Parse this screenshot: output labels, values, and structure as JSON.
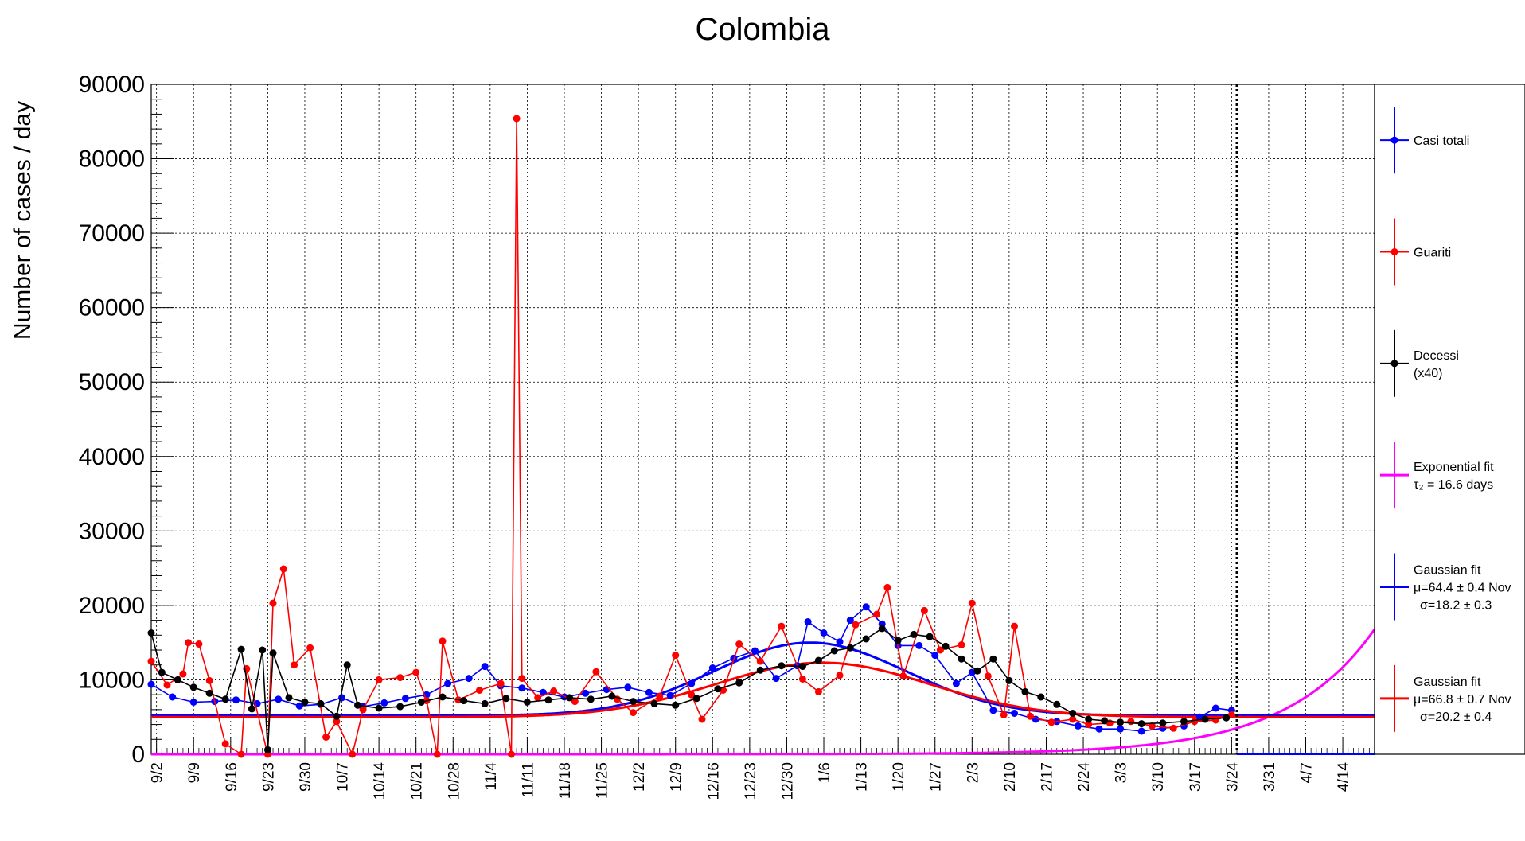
{
  "chart_data": {
    "type": "line",
    "title": "Colombia",
    "ylabel": "Number of cases / day",
    "xlabel": "",
    "ylim": [
      0,
      90000
    ],
    "x_unit": "date",
    "x_range": [
      "2020-09-01",
      "2021-04-20"
    ],
    "grid": true,
    "yticks": [
      0,
      10000,
      20000,
      30000,
      40000,
      50000,
      60000,
      70000,
      80000,
      90000
    ],
    "xticks": [
      {
        "label": "9/2",
        "date": "2020-09-02"
      },
      {
        "label": "9/9",
        "date": "2020-09-09"
      },
      {
        "label": "9/16",
        "date": "2020-09-16"
      },
      {
        "label": "9/23",
        "date": "2020-09-23"
      },
      {
        "label": "9/30",
        "date": "2020-09-30"
      },
      {
        "label": "10/7",
        "date": "2020-10-07"
      },
      {
        "label": "10/14",
        "date": "2020-10-14"
      },
      {
        "label": "10/21",
        "date": "2020-10-21"
      },
      {
        "label": "10/28",
        "date": "2020-10-28"
      },
      {
        "label": "11/4",
        "date": "2020-11-04"
      },
      {
        "label": "11/11",
        "date": "2020-11-11"
      },
      {
        "label": "11/18",
        "date": "2020-11-18"
      },
      {
        "label": "11/25",
        "date": "2020-11-25"
      },
      {
        "label": "12/2",
        "date": "2020-12-02"
      },
      {
        "label": "12/9",
        "date": "2020-12-09"
      },
      {
        "label": "12/16",
        "date": "2020-12-16"
      },
      {
        "label": "12/23",
        "date": "2020-12-23"
      },
      {
        "label": "12/30",
        "date": "2020-12-30"
      },
      {
        "label": "1/6",
        "date": "2021-01-06"
      },
      {
        "label": "1/13",
        "date": "2021-01-13"
      },
      {
        "label": "1/20",
        "date": "2021-01-20"
      },
      {
        "label": "1/27",
        "date": "2021-01-27"
      },
      {
        "label": "2/3",
        "date": "2021-02-03"
      },
      {
        "label": "2/10",
        "date": "2021-02-10"
      },
      {
        "label": "2/17",
        "date": "2021-02-17"
      },
      {
        "label": "2/24",
        "date": "2021-02-24"
      },
      {
        "label": "3/3",
        "date": "2021-03-03"
      },
      {
        "label": "3/10",
        "date": "2021-03-10"
      },
      {
        "label": "3/17",
        "date": "2021-03-17"
      },
      {
        "label": "3/24",
        "date": "2021-03-24"
      },
      {
        "label": "3/31",
        "date": "2021-03-31"
      },
      {
        "label": "4/7",
        "date": "2021-04-07"
      },
      {
        "label": "4/14",
        "date": "2021-04-14"
      }
    ],
    "vline": {
      "date": "2021-03-25",
      "style": "dotted"
    },
    "legend_position": "right",
    "legend": [
      {
        "id": "casi",
        "label": "Casi totali",
        "sub": "",
        "color": "#0000ff"
      },
      {
        "id": "guariti",
        "label": "Guariti",
        "sub": "",
        "color": "#ff0000"
      },
      {
        "id": "decessi",
        "label": "Decessi",
        "sub": "(x40)",
        "color": "#000000"
      },
      {
        "id": "expfit",
        "label": "Exponential fit",
        "sub": "τ₂ = 16.6 days",
        "color": "#ff00ff"
      },
      {
        "id": "gfit1",
        "label": "Gaussian fit",
        "sub": "μ=64.4 ± 0.4 Nov",
        "sub2": "σ=18.2 ± 0.3",
        "color": "#0000ff"
      },
      {
        "id": "gfit2",
        "label": "Gaussian fit",
        "sub": "μ=66.8 ± 0.7 Nov",
        "sub2": "σ=20.2 ± 0.4",
        "color": "#ff0000"
      }
    ],
    "series": [
      {
        "name": "Casi totali",
        "color": "#0000ff",
        "points": [
          [
            "2020-09-01",
            9400
          ],
          [
            "2020-09-05",
            7700
          ],
          [
            "2020-09-09",
            7000
          ],
          [
            "2020-09-13",
            7100
          ],
          [
            "2020-09-17",
            7300
          ],
          [
            "2020-09-21",
            6800
          ],
          [
            "2020-09-25",
            7400
          ],
          [
            "2020-09-29",
            6500
          ],
          [
            "2020-10-03",
            6700
          ],
          [
            "2020-10-07",
            7600
          ],
          [
            "2020-10-11",
            6400
          ],
          [
            "2020-10-15",
            6900
          ],
          [
            "2020-10-19",
            7500
          ],
          [
            "2020-10-23",
            8000
          ],
          [
            "2020-10-27",
            9500
          ],
          [
            "2020-10-31",
            10200
          ],
          [
            "2020-11-03",
            11800
          ],
          [
            "2020-11-06",
            9200
          ],
          [
            "2020-11-10",
            8900
          ],
          [
            "2020-11-14",
            8300
          ],
          [
            "2020-11-18",
            7700
          ],
          [
            "2020-11-22",
            8200
          ],
          [
            "2020-11-26",
            8700
          ],
          [
            "2020-11-30",
            9000
          ],
          [
            "2020-12-04",
            8300
          ],
          [
            "2020-12-08",
            7900
          ],
          [
            "2020-12-12",
            9500
          ],
          [
            "2020-12-16",
            11600
          ],
          [
            "2020-12-20",
            12900
          ],
          [
            "2020-12-24",
            13900
          ],
          [
            "2020-12-28",
            10200
          ],
          [
            "2021-01-01",
            11900
          ],
          [
            "2021-01-03",
            17800
          ],
          [
            "2021-01-06",
            16300
          ],
          [
            "2021-01-09",
            15100
          ],
          [
            "2021-01-11",
            18000
          ],
          [
            "2021-01-14",
            19800
          ],
          [
            "2021-01-17",
            17500
          ],
          [
            "2021-01-20",
            14600
          ],
          [
            "2021-01-24",
            14600
          ],
          [
            "2021-01-27",
            13300
          ],
          [
            "2021-01-31",
            9500
          ],
          [
            "2021-02-03",
            11000
          ],
          [
            "2021-02-07",
            5900
          ],
          [
            "2021-02-11",
            5500
          ],
          [
            "2021-02-15",
            4700
          ],
          [
            "2021-02-19",
            4400
          ],
          [
            "2021-02-23",
            3800
          ],
          [
            "2021-02-27",
            3400
          ],
          [
            "2021-03-03",
            3400
          ],
          [
            "2021-03-07",
            3100
          ],
          [
            "2021-03-11",
            3500
          ],
          [
            "2021-03-15",
            3800
          ],
          [
            "2021-03-18",
            5000
          ],
          [
            "2021-03-21",
            6200
          ],
          [
            "2021-03-24",
            5900
          ]
        ]
      },
      {
        "name": "Guariti",
        "color": "#ff0000",
        "points": [
          [
            "2020-09-01",
            12500
          ],
          [
            "2020-09-04",
            9300
          ],
          [
            "2020-09-07",
            10800
          ],
          [
            "2020-09-08",
            15000
          ],
          [
            "2020-09-10",
            14800
          ],
          [
            "2020-09-12",
            9900
          ],
          [
            "2020-09-15",
            1400
          ],
          [
            "2020-09-18",
            0
          ],
          [
            "2020-09-19",
            11500
          ],
          [
            "2020-09-23",
            0
          ],
          [
            "2020-09-24",
            20300
          ],
          [
            "2020-09-26",
            24900
          ],
          [
            "2020-09-28",
            12000
          ],
          [
            "2020-10-01",
            14300
          ],
          [
            "2020-10-04",
            2300
          ],
          [
            "2020-10-06",
            4400
          ],
          [
            "2020-10-09",
            0
          ],
          [
            "2020-10-11",
            6000
          ],
          [
            "2020-10-14",
            10000
          ],
          [
            "2020-10-18",
            10300
          ],
          [
            "2020-10-21",
            11000
          ],
          [
            "2020-10-23",
            7200
          ],
          [
            "2020-10-25",
            0
          ],
          [
            "2020-10-26",
            15200
          ],
          [
            "2020-10-29",
            7300
          ],
          [
            "2020-11-02",
            8600
          ],
          [
            "2020-11-06",
            9500
          ],
          [
            "2020-11-08",
            0
          ],
          [
            "2020-11-09",
            85400
          ],
          [
            "2020-11-10",
            10200
          ],
          [
            "2020-11-13",
            7600
          ],
          [
            "2020-11-16",
            8500
          ],
          [
            "2020-11-20",
            7100
          ],
          [
            "2020-11-24",
            11100
          ],
          [
            "2020-11-28",
            7400
          ],
          [
            "2020-12-01",
            5600
          ],
          [
            "2020-12-06",
            7800
          ],
          [
            "2020-12-09",
            13300
          ],
          [
            "2020-12-12",
            8000
          ],
          [
            "2020-12-14",
            4700
          ],
          [
            "2020-12-18",
            8600
          ],
          [
            "2020-12-21",
            14800
          ],
          [
            "2020-12-25",
            12500
          ],
          [
            "2020-12-29",
            17200
          ],
          [
            "2021-01-02",
            10100
          ],
          [
            "2021-01-05",
            8400
          ],
          [
            "2021-01-09",
            10600
          ],
          [
            "2021-01-12",
            17400
          ],
          [
            "2021-01-16",
            18800
          ],
          [
            "2021-01-18",
            22400
          ],
          [
            "2021-01-21",
            10500
          ],
          [
            "2021-01-25",
            19300
          ],
          [
            "2021-01-28",
            14000
          ],
          [
            "2021-02-01",
            14700
          ],
          [
            "2021-02-03",
            20300
          ],
          [
            "2021-02-06",
            10500
          ],
          [
            "2021-02-09",
            5300
          ],
          [
            "2021-02-11",
            17200
          ],
          [
            "2021-02-14",
            5100
          ],
          [
            "2021-02-18",
            4300
          ],
          [
            "2021-02-22",
            4700
          ],
          [
            "2021-02-25",
            4000
          ],
          [
            "2021-03-01",
            4200
          ],
          [
            "2021-03-05",
            4400
          ],
          [
            "2021-03-09",
            3800
          ],
          [
            "2021-03-13",
            3500
          ],
          [
            "2021-03-17",
            4400
          ],
          [
            "2021-03-21",
            4600
          ],
          [
            "2021-03-24",
            5300
          ]
        ]
      },
      {
        "name": "Decessi",
        "color": "#000000",
        "points": [
          [
            "2020-09-01",
            16300
          ],
          [
            "2020-09-03",
            11000
          ],
          [
            "2020-09-06",
            10000
          ],
          [
            "2020-09-09",
            9000
          ],
          [
            "2020-09-12",
            8200
          ],
          [
            "2020-09-15",
            7400
          ],
          [
            "2020-09-18",
            14100
          ],
          [
            "2020-09-20",
            6100
          ],
          [
            "2020-09-22",
            14000
          ],
          [
            "2020-09-23",
            600
          ],
          [
            "2020-09-24",
            13600
          ],
          [
            "2020-09-27",
            7600
          ],
          [
            "2020-09-30",
            7000
          ],
          [
            "2020-10-03",
            6800
          ],
          [
            "2020-10-06",
            5100
          ],
          [
            "2020-10-08",
            12000
          ],
          [
            "2020-10-10",
            6600
          ],
          [
            "2020-10-14",
            6200
          ],
          [
            "2020-10-18",
            6400
          ],
          [
            "2020-10-22",
            7000
          ],
          [
            "2020-10-26",
            7700
          ],
          [
            "2020-10-30",
            7200
          ],
          [
            "2020-11-03",
            6800
          ],
          [
            "2020-11-07",
            7500
          ],
          [
            "2020-11-11",
            7000
          ],
          [
            "2020-11-15",
            7300
          ],
          [
            "2020-11-19",
            7600
          ],
          [
            "2020-11-23",
            7400
          ],
          [
            "2020-11-27",
            7800
          ],
          [
            "2020-12-01",
            7100
          ],
          [
            "2020-12-05",
            6800
          ],
          [
            "2020-12-09",
            6600
          ],
          [
            "2020-12-13",
            7500
          ],
          [
            "2020-12-17",
            8800
          ],
          [
            "2020-12-21",
            9600
          ],
          [
            "2020-12-25",
            11300
          ],
          [
            "2020-12-29",
            11900
          ],
          [
            "2021-01-02",
            11800
          ],
          [
            "2021-01-05",
            12600
          ],
          [
            "2021-01-08",
            13900
          ],
          [
            "2021-01-11",
            14300
          ],
          [
            "2021-01-14",
            15500
          ],
          [
            "2021-01-17",
            16900
          ],
          [
            "2021-01-20",
            15300
          ],
          [
            "2021-01-23",
            16100
          ],
          [
            "2021-01-26",
            15800
          ],
          [
            "2021-01-29",
            14500
          ],
          [
            "2021-02-01",
            12800
          ],
          [
            "2021-02-04",
            11200
          ],
          [
            "2021-02-07",
            12800
          ],
          [
            "2021-02-10",
            9900
          ],
          [
            "2021-02-13",
            8400
          ],
          [
            "2021-02-16",
            7700
          ],
          [
            "2021-02-19",
            6700
          ],
          [
            "2021-02-22",
            5500
          ],
          [
            "2021-02-25",
            4700
          ],
          [
            "2021-02-28",
            4500
          ],
          [
            "2021-03-03",
            4300
          ],
          [
            "2021-03-07",
            4100
          ],
          [
            "2021-03-11",
            4200
          ],
          [
            "2021-03-15",
            4400
          ],
          [
            "2021-03-19",
            4700
          ],
          [
            "2021-03-23",
            4900
          ]
        ]
      }
    ],
    "fits": [
      {
        "name": "Exponential fit",
        "color": "#ff00ff",
        "model": "exponential",
        "tau_days": 16.6,
        "value_at_end": 16800,
        "end_date": "2021-04-20"
      },
      {
        "name": "Gaussian fit",
        "color": "#0000ff",
        "model": "gaussian",
        "baseline": 5200,
        "amplitude": 9800,
        "mu_nov": 64.4,
        "sigma_days": 18.2,
        "range": [
          "2020-09-01",
          "2021-04-20"
        ]
      },
      {
        "name": "Gaussian fit",
        "color": "#ff0000",
        "model": "gaussian",
        "baseline": 5000,
        "amplitude": 7300,
        "mu_nov": 66.8,
        "sigma_days": 20.2,
        "range": [
          "2020-09-01",
          "2021-04-20"
        ]
      }
    ],
    "post_cutoff_level": 0
  }
}
